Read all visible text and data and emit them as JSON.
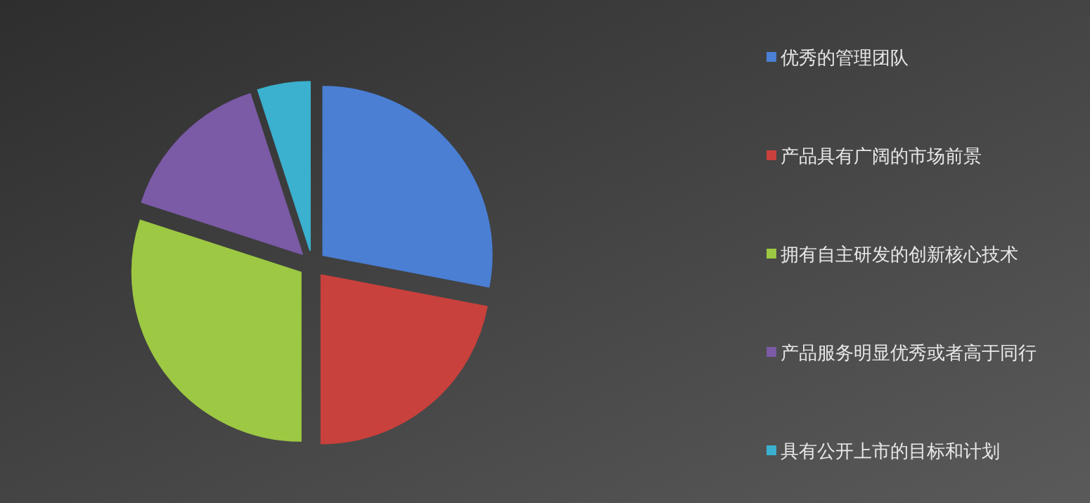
{
  "chart_data": {
    "type": "pie",
    "categories": [
      "优秀的管理团队",
      "产品具有广阔的市场前景",
      "拥有自主研发的创新核心技术",
      "产品服务明显优秀或者高于同行",
      "具有公开上市的目标和计划"
    ],
    "values": [
      28,
      22,
      30,
      15,
      5
    ],
    "colors": [
      "#4a7fd4",
      "#c9413c",
      "#9dc843",
      "#7b5aa6",
      "#3bb0cf"
    ],
    "legend": "right"
  }
}
